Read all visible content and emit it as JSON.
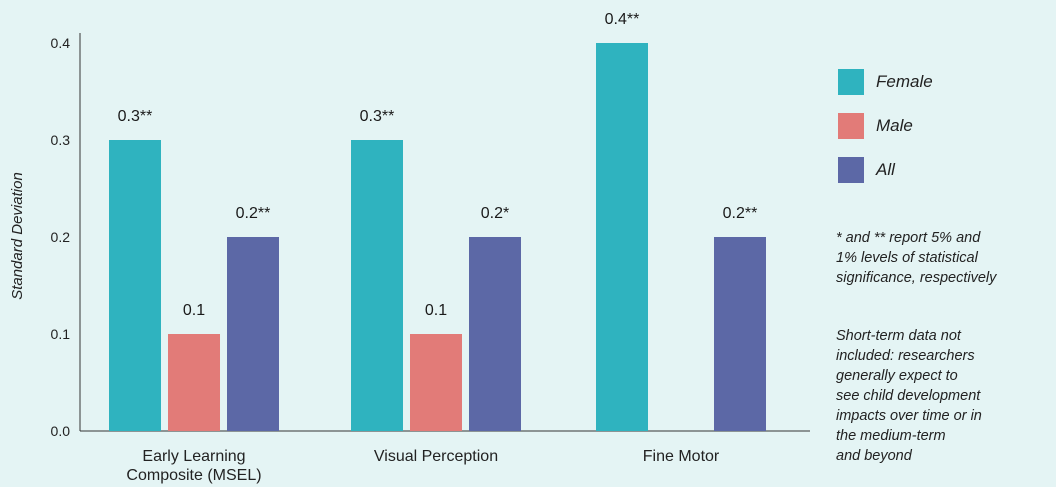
{
  "chart_data": {
    "type": "bar",
    "categories": [
      [
        "Early Learning",
        "Composite (MSEL)"
      ],
      [
        "Visual Perception"
      ],
      [
        "Fine Motor"
      ]
    ],
    "series": [
      {
        "name": "Female",
        "color": "#2fb3bf",
        "values": [
          0.3,
          0.3,
          0.4
        ],
        "labels": [
          "0.3**",
          "0.3**",
          "0.4**"
        ]
      },
      {
        "name": "Male",
        "color": "#e27b78",
        "values": [
          0.1,
          0.1,
          null
        ],
        "labels": [
          "0.1",
          "0.1",
          ""
        ]
      },
      {
        "name": "All",
        "color": "#5c68a6",
        "values": [
          0.2,
          0.2,
          0.2
        ],
        "labels": [
          "0.2**",
          "0.2*",
          "0.2**"
        ]
      }
    ],
    "ylabel": "Standard Deviation",
    "yticks": [
      "0.0",
      "0.1",
      "0.2",
      "0.3",
      "0.4"
    ],
    "ylim": [
      0,
      0.4
    ],
    "grid": false,
    "legend_position": "right"
  },
  "notes": {
    "significance": [
      "* and ** report 5% and",
      "1% levels of statistical",
      "significance, respectively"
    ],
    "short_term": [
      "Short-term data not",
      "included: researchers",
      "generally expect to",
      "see child development",
      "impacts over time or in",
      "the medium-term",
      "and beyond"
    ]
  }
}
